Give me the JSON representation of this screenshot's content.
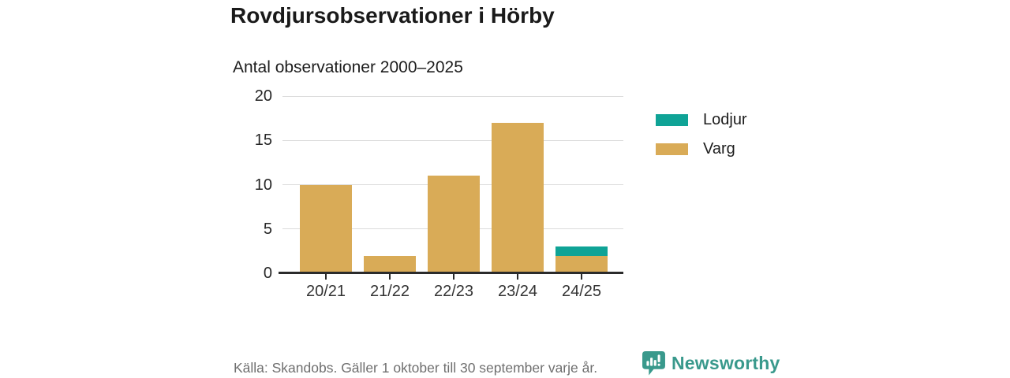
{
  "page": {
    "background": "#ffffff"
  },
  "chart_data": {
    "type": "bar",
    "stacked": true,
    "title": "Rovdjursobservationer i Hörby",
    "subtitle": "Antal observationer 2000–2025",
    "categories": [
      "20/21",
      "21/22",
      "22/23",
      "23/24",
      "24/25"
    ],
    "series": [
      {
        "name": "Lodjur",
        "color": "#0fa396",
        "values": [
          0,
          0,
          0,
          0,
          1
        ]
      },
      {
        "name": "Varg",
        "color": "#d9ab57",
        "values": [
          10,
          2,
          11,
          17,
          2
        ]
      }
    ],
    "stack_order_bottom_to_top": [
      "Varg",
      "Lodjur"
    ],
    "totals": [
      10,
      2,
      11,
      17,
      3
    ],
    "xlabel": "",
    "ylabel": "",
    "ylim": [
      0,
      20
    ],
    "yticks": [
      0,
      5,
      10,
      15,
      20
    ],
    "grid": true,
    "legend_position": "right",
    "axis_color": "#2b2b2b",
    "gridline_color": "#dcdcdc"
  },
  "footer": {
    "source": "Källa: Skandobs. Gäller 1 oktober till 30 september varje år.",
    "brand": "Newsworthy",
    "brand_color": "#39998c"
  }
}
